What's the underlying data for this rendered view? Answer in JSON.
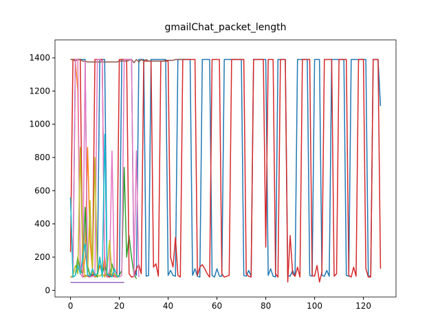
{
  "chart_data": {
    "type": "line",
    "title": "gmailChat_packet_length",
    "xlim": [
      -6.35,
      133.35
    ],
    "ylim": [
      -40,
      1508
    ],
    "xticks": [
      0,
      20,
      40,
      60,
      80,
      100,
      120
    ],
    "yticks": [
      0,
      200,
      400,
      600,
      800,
      1000,
      1200,
      1400
    ],
    "series": [
      {
        "color": "#1f77b4",
        "values": [
          560,
          100,
          1390,
          1390,
          1390,
          1390,
          1390,
          90,
          85,
          100,
          80,
          90,
          1390,
          1390,
          1390,
          90,
          85,
          100,
          90,
          80,
          90,
          1390,
          1390,
          1390,
          1390,
          1390,
          120,
          90,
          1390,
          1390,
          1390,
          85,
          90,
          1390,
          1390,
          1390,
          1390,
          1390,
          1390,
          1390,
          90,
          120,
          90,
          85,
          1390,
          1390,
          1390,
          1390,
          1390,
          1390,
          90,
          130,
          85,
          80,
          1390,
          1390,
          1390,
          1390,
          90,
          80,
          130,
          85,
          85,
          1390,
          1390,
          1390,
          1390,
          1390,
          1390,
          1390,
          1390,
          90,
          85,
          120,
          85,
          1390,
          1390,
          1390,
          1390,
          1390,
          1390,
          90,
          130,
          85,
          80,
          1390,
          1390,
          1390,
          1390,
          90,
          85,
          120,
          85,
          1390,
          1390,
          1390,
          1390,
          1390,
          90,
          85,
          1390,
          1390,
          1390,
          90,
          85,
          120,
          85,
          1390,
          1390,
          1390,
          1390,
          1390,
          1390,
          90,
          85,
          1390,
          1390,
          1390,
          1390,
          1390,
          1390,
          1390,
          90,
          85,
          1390,
          1390,
          1390,
          1110
        ]
      },
      {
        "color": "#ff7f0e",
        "values": [
          1390,
          1390,
          1380,
          1200,
          150,
          90,
          200,
          860,
          300,
          120,
          80,
          90,
          150,
          100,
          200,
          80,
          100,
          90,
          80,
          85
        ]
      },
      {
        "color": "#2ca02c",
        "values": [
          80,
          80,
          90,
          200,
          120,
          100,
          500,
          150,
          90,
          85,
          100,
          80,
          200,
          100,
          150,
          90,
          85,
          160,
          100,
          80,
          90,
          120,
          740,
          200,
          330,
          200,
          100,
          70
        ]
      },
      {
        "color": "#d62728",
        "values": [
          230,
          1390,
          1390,
          1390,
          1390,
          80,
          90,
          85,
          80,
          90,
          1390,
          1390,
          1390,
          1390,
          90,
          85,
          80,
          90,
          85,
          80,
          1390,
          1390,
          1390,
          1390,
          100,
          80,
          85,
          130,
          155,
          100,
          1380,
          1380,
          1380,
          1380,
          140,
          160,
          85,
          1380,
          1380,
          1380,
          1380,
          200,
          140,
          320,
          90,
          80,
          1390,
          1390,
          1390,
          1390,
          1390,
          1390,
          90,
          140,
          155,
          130,
          100,
          80,
          1390,
          1390,
          1390,
          1390,
          100,
          80,
          85,
          90,
          1390,
          1390,
          1390,
          1390,
          1390,
          1390,
          100,
          85,
          80,
          1390,
          1390,
          1390,
          1390,
          1390,
          260,
          1390,
          1390,
          1390,
          100,
          80,
          1390,
          1390,
          1390,
          50,
          330,
          100,
          85,
          140,
          80,
          1390,
          1390,
          1390,
          1390,
          90,
          85,
          150,
          50,
          110,
          1390,
          1390,
          1390,
          1390,
          85,
          100,
          1390,
          1390,
          1390,
          1390,
          90,
          80,
          140,
          85,
          1390,
          1390,
          1390,
          130,
          80,
          80,
          1390,
          1390,
          1390,
          130
        ]
      },
      {
        "color": "#9467bd",
        "values": [
          48,
          48,
          48,
          48,
          48,
          48,
          48,
          48,
          48,
          48,
          48,
          48,
          48,
          48,
          48,
          48,
          48,
          48,
          48,
          48,
          48,
          48,
          48
        ]
      },
      {
        "color": "#8c564b",
        "values": [
          1390,
          1390,
          1380,
          1390,
          1390,
          1380,
          1380,
          1375,
          1375,
          1375,
          1375,
          1375,
          1375,
          1375,
          1375,
          1375,
          1375,
          1375,
          1375,
          1375,
          1380,
          1380,
          1380,
          1380,
          1385,
          1390,
          1370,
          1390,
          1375,
          1390,
          1380,
          1390,
          1380,
          1380,
          1380,
          1380,
          1380,
          1380,
          1380,
          1385,
          1385,
          1385,
          1385,
          1390,
          1390,
          1390,
          1390,
          1390
        ]
      },
      {
        "color": "#e377c2",
        "values": [
          80,
          80,
          1390,
          1390,
          100,
          80,
          1380,
          100,
          80,
          85,
          90,
          1390,
          1390,
          1380,
          100,
          80,
          120,
          840,
          80,
          90,
          80,
          90,
          1390,
          1390,
          1390,
          1390,
          80,
          840,
          80
        ]
      },
      {
        "color": "#bcbd22",
        "values": [
          80,
          90,
          150,
          100,
          860,
          200,
          80,
          90,
          540,
          100,
          800,
          90,
          85,
          100,
          80,
          130,
          300,
          90,
          100,
          80
        ]
      },
      {
        "color": "#17becf",
        "values": [
          560,
          80,
          90,
          150,
          100,
          200,
          280,
          90,
          85,
          130,
          90,
          100,
          200,
          80,
          940,
          100,
          90,
          80,
          130,
          90,
          80
        ]
      }
    ]
  }
}
